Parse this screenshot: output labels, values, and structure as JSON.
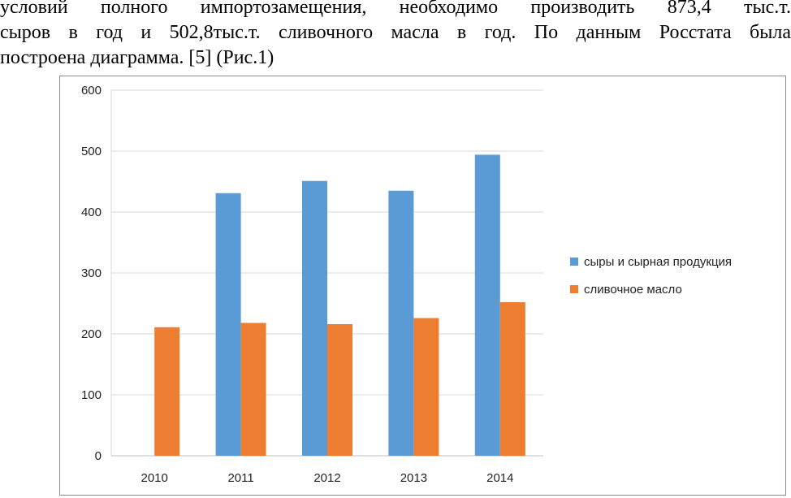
{
  "document": {
    "lines": [
      "условий полного импортозамещения, необходимо производить 873,4 тыс.т.",
      "сыров в год и 502,8тыс.т. сливочного масла в год. По данным Росстата была",
      "построена диаграмма. [5] (Рис.1)"
    ]
  },
  "chart_data": {
    "type": "bar",
    "categories": [
      "2010",
      "2011",
      "2012",
      "2013",
      "2014"
    ],
    "series": [
      {
        "name": "сыры и сырная продукция",
        "values": [
          0,
          431,
          451,
          435,
          494
        ],
        "color": "#5b9bd5"
      },
      {
        "name": "сливочное масло",
        "values": [
          211,
          218,
          216,
          226,
          252
        ],
        "color": "#ed7d31"
      }
    ],
    "yticks": [
      0,
      100,
      200,
      300,
      400,
      500,
      600
    ],
    "ylim": [
      0,
      600
    ],
    "grid": true,
    "legend": "right",
    "title": "",
    "xlabel": "",
    "ylabel": ""
  }
}
